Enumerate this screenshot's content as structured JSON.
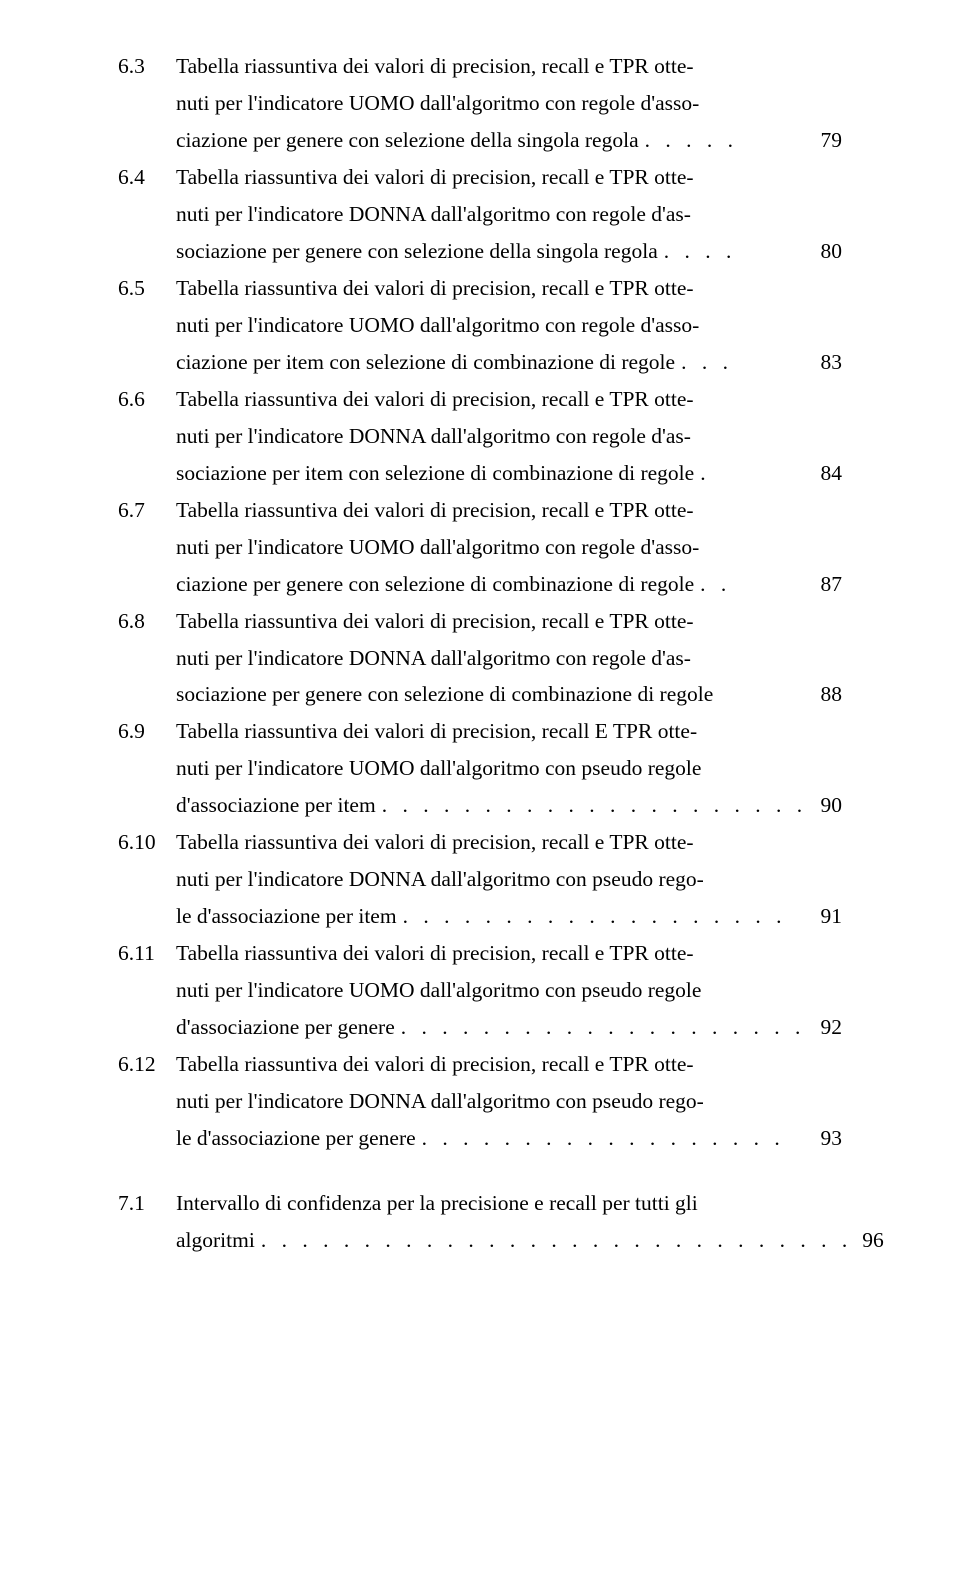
{
  "typography": {
    "font_family": "Computer Modern / Latin Modern (serif)",
    "font_size_pt": 12,
    "line_height": 1.72,
    "text_color": "#000000",
    "background_color": "#ffffff"
  },
  "entries": [
    {
      "num": "6.3",
      "lines": [
        "Tabella riassuntiva dei valori di precision, recall e TPR otte-",
        "nuti per l'indicatore UOMO dall'algoritmo con regole d'asso-"
      ],
      "last": "ciazione per genere con selezione della singola regola",
      "dots": ". . . . .",
      "page": "79"
    },
    {
      "num": "6.4",
      "lines": [
        "Tabella riassuntiva dei valori di precision, recall e TPR otte-",
        "nuti per l'indicatore DONNA dall'algoritmo con regole d'as-"
      ],
      "last": "sociazione per genere con selezione della singola regola",
      "dots": ". . . .",
      "page": "80"
    },
    {
      "num": "6.5",
      "lines": [
        "Tabella riassuntiva dei valori di precision, recall e TPR otte-",
        "nuti per l'indicatore UOMO dall'algoritmo con regole d'asso-"
      ],
      "last": "ciazione per item con selezione di combinazione di regole",
      "dots": ". . .",
      "page": "83"
    },
    {
      "num": "6.6",
      "lines": [
        "Tabella riassuntiva dei valori di precision, recall e TPR otte-",
        "nuti per l'indicatore DONNA dall'algoritmo con regole d'as-"
      ],
      "last": "sociazione per item con selezione di combinazione di regole",
      "dots": ".",
      "page": "84"
    },
    {
      "num": "6.7",
      "lines": [
        "Tabella riassuntiva dei valori di precision, recall e TPR otte-",
        "nuti per l'indicatore UOMO dall'algoritmo con regole d'asso-"
      ],
      "last": "ciazione per genere con selezione di combinazione di regole",
      "dots": ". .",
      "page": "87"
    },
    {
      "num": "6.8",
      "lines": [
        "Tabella riassuntiva dei valori di precision, recall e TPR otte-",
        "nuti per l'indicatore DONNA dall'algoritmo con regole d'as-"
      ],
      "last": "sociazione per genere con selezione di combinazione di regole",
      "dots": "",
      "page": "88"
    },
    {
      "num": "6.9",
      "lines": [
        "Tabella riassuntiva dei valori di precision, recall E TPR otte-",
        "nuti per l'indicatore UOMO dall'algoritmo con pseudo regole"
      ],
      "last": "d'associazione per item",
      "dots": ". . . . . . . . . . . . . . . . . . . . .",
      "page": "90"
    },
    {
      "num": "6.10",
      "lines": [
        "Tabella riassuntiva dei valori di precision, recall e TPR otte-",
        "nuti per l'indicatore DONNA dall'algoritmo con pseudo rego-"
      ],
      "last": "le d'associazione per item",
      "dots": " . . . . . . . . . . . . . . . . . . .",
      "page": "91"
    },
    {
      "num": "6.11",
      "lines": [
        "Tabella riassuntiva dei valori di precision, recall e TPR otte-",
        "nuti per l'indicatore UOMO dall'algoritmo con pseudo regole"
      ],
      "last": "d'associazione per genere",
      "dots": ". . . . . . . . . . . . . . . . . . . .",
      "page": "92"
    },
    {
      "num": "6.12",
      "lines": [
        "Tabella riassuntiva dei valori di precision, recall e TPR otte-",
        "nuti per l'indicatore DONNA dall'algoritmo con pseudo rego-"
      ],
      "last": "le d'associazione per genere",
      "dots": " . . . . . . . . . . . . . . . . . .",
      "page": "93"
    },
    {
      "num": "7.1",
      "lines": [
        "Intervallo di confidenza per la precisione e recall per tutti gli"
      ],
      "last": "algoritmi",
      "dots": ". . . . . . . . . . . . . . . . . . . . . . . . . . . . .",
      "page": "96"
    }
  ]
}
